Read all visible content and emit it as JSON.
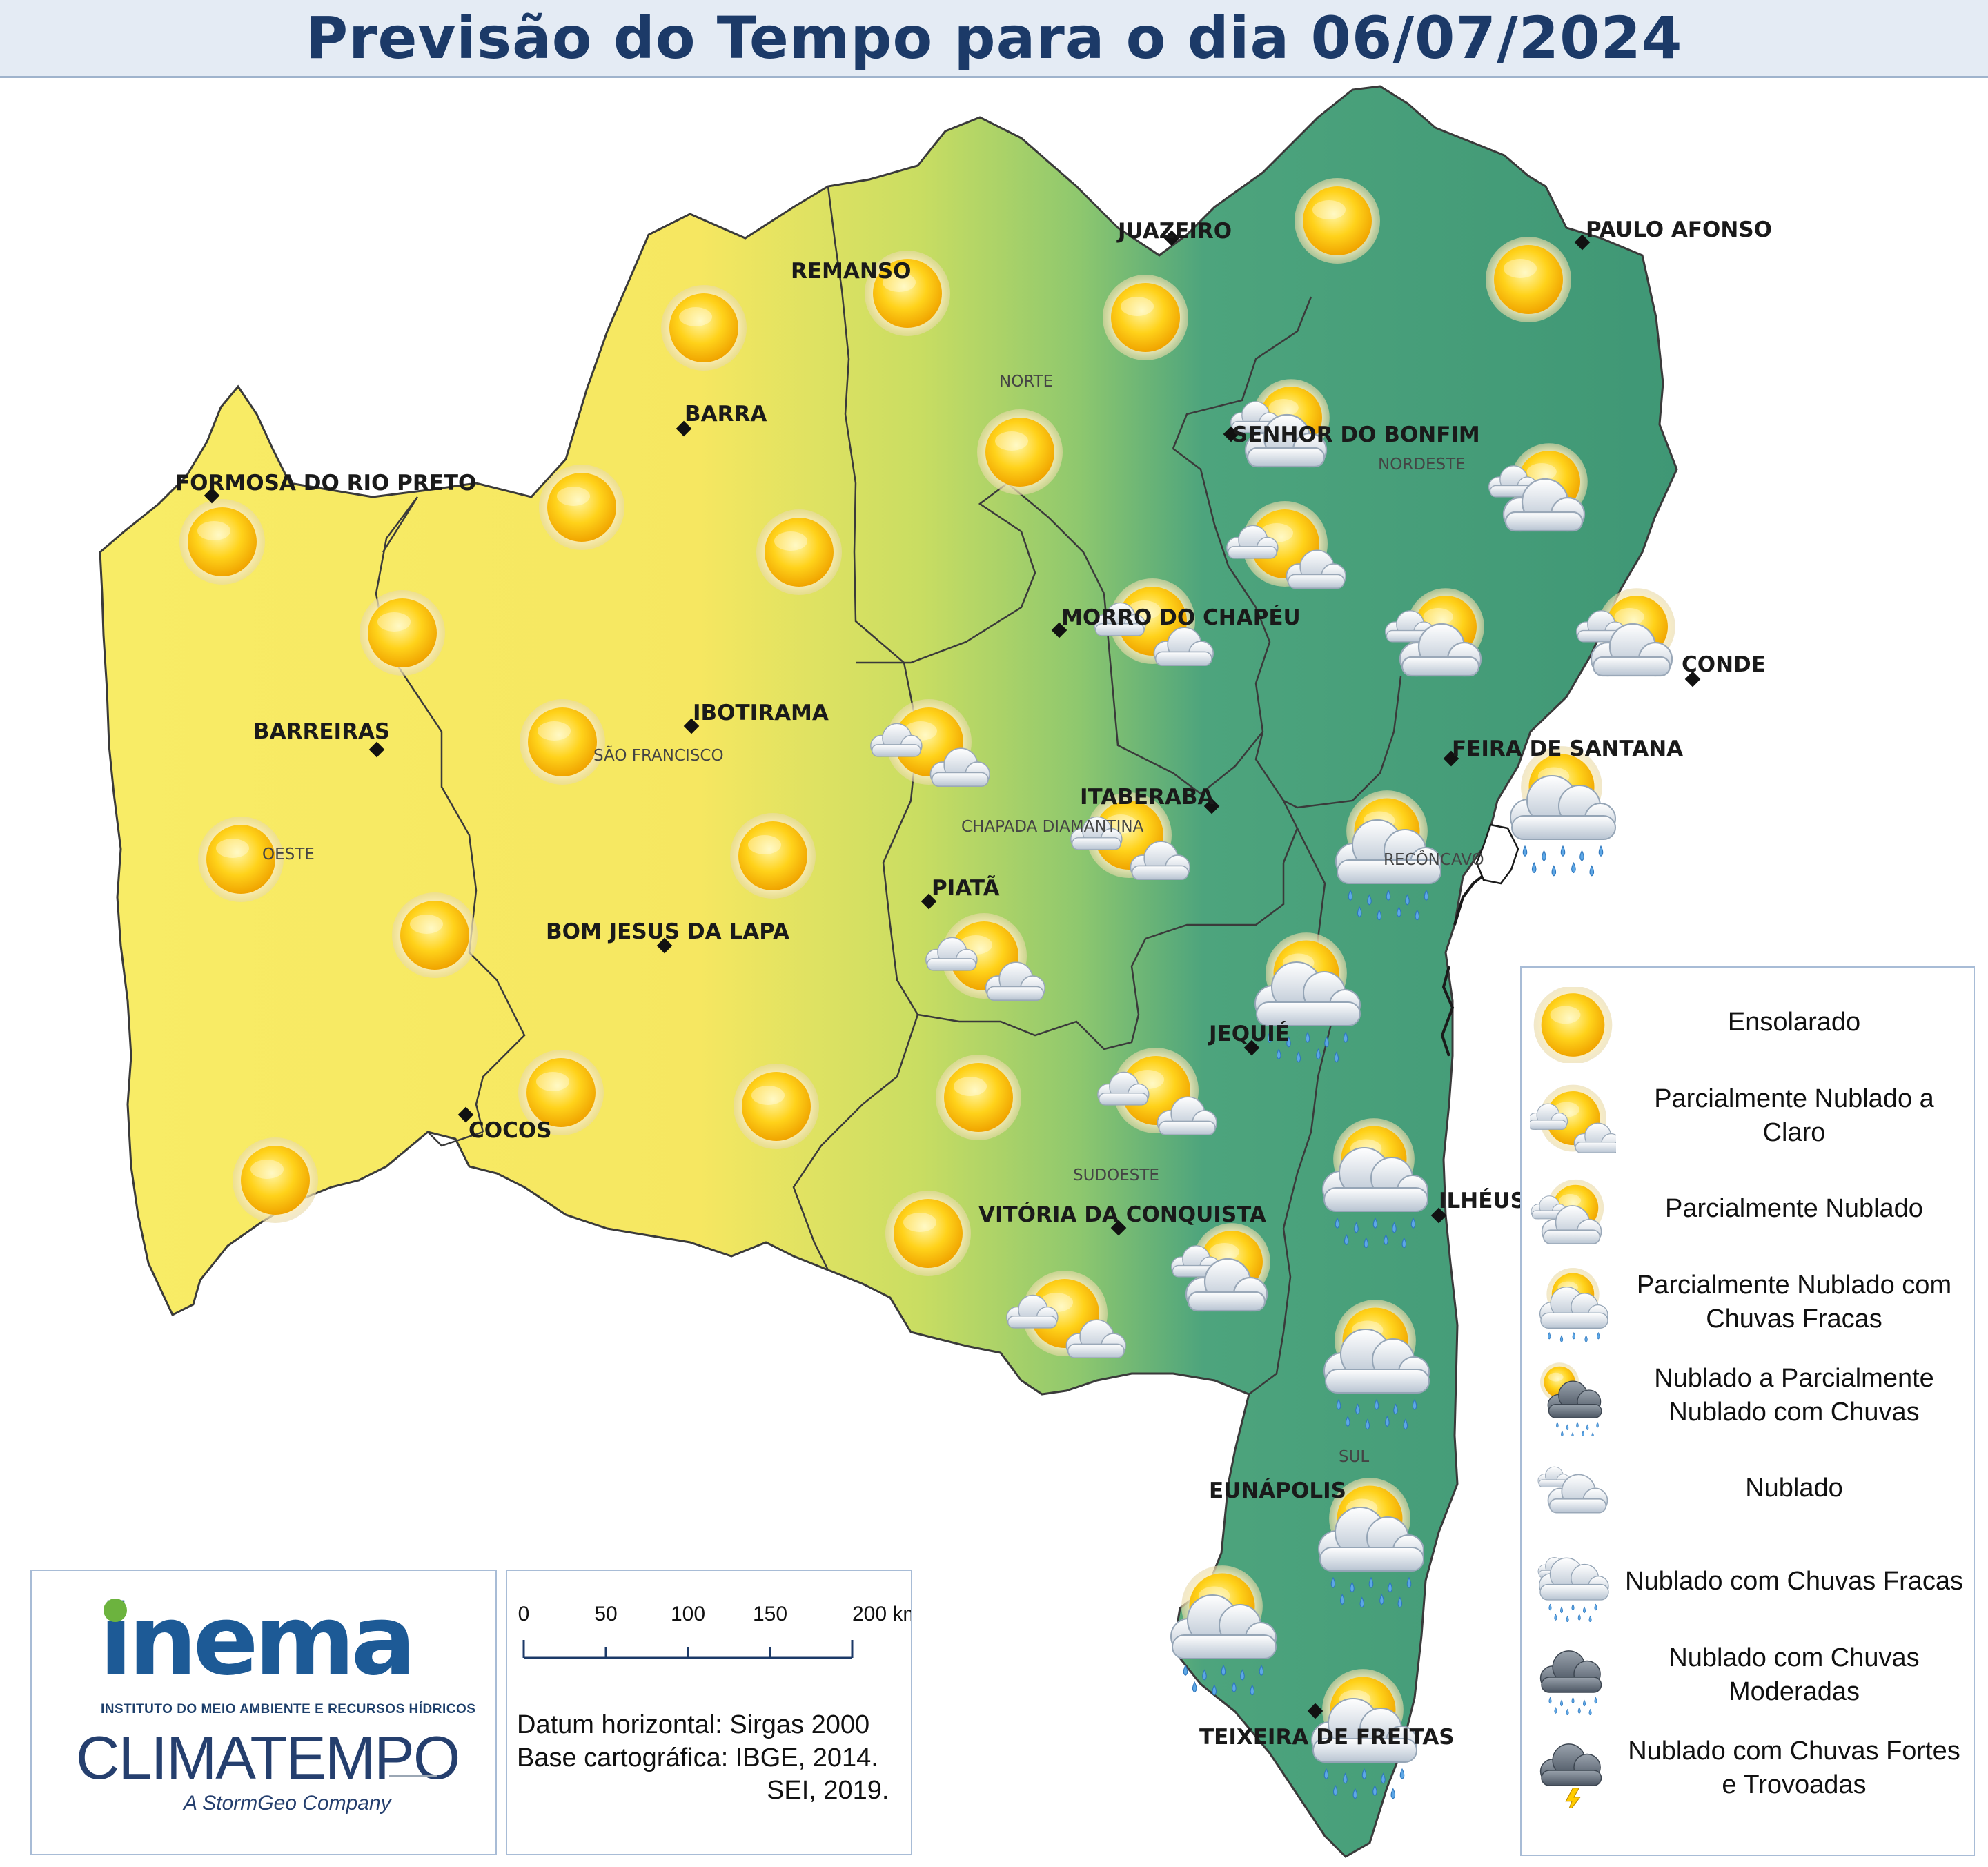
{
  "title": "Previsão do Tempo para o dia 06/07/2024",
  "cities": [
    {
      "name": "JUAZEIRO",
      "icon": "diamond-marker"
    },
    {
      "name": "PAULO AFONSO",
      "icon": "diamond-marker"
    },
    {
      "name": "REMANSO",
      "icon": "diamond-marker"
    },
    {
      "name": "BARRA",
      "icon": "diamond-marker"
    },
    {
      "name": "SENHOR DO BONFIM",
      "icon": "diamond-marker"
    },
    {
      "name": "FORMOSA DO RIO PRETO",
      "icon": "diamond-marker"
    },
    {
      "name": "MORRO DO CHAPÉU",
      "icon": "diamond-marker"
    },
    {
      "name": "CONDE",
      "icon": "diamond-marker"
    },
    {
      "name": "IBOTIRAMA",
      "icon": "diamond-marker"
    },
    {
      "name": "BARREIRAS",
      "icon": "diamond-marker"
    },
    {
      "name": "FEIRA DE SANTANA",
      "icon": "diamond-marker"
    },
    {
      "name": "ITABERABA",
      "icon": "diamond-marker"
    },
    {
      "name": "PIATÃ",
      "icon": "diamond-marker"
    },
    {
      "name": "BOM JESUS DA LAPA",
      "icon": "diamond-marker"
    },
    {
      "name": "JEQUIÉ",
      "icon": "diamond-marker"
    },
    {
      "name": "COCOS",
      "icon": "diamond-marker"
    },
    {
      "name": "ILHÉUS",
      "icon": "diamond-marker"
    },
    {
      "name": "VITÓRIA DA CONQUISTA",
      "icon": "diamond-marker"
    },
    {
      "name": "EUNÁPOLIS",
      "icon": "diamond-marker"
    },
    {
      "name": "TEIXEIRA DE FREITAS",
      "icon": "diamond-marker"
    }
  ],
  "regions": [
    "NORTE",
    "NORDESTE",
    "SÃO FRANCISCO",
    "OESTE",
    "CHAPADA DIAMANTINA",
    "RECÔNCAVO",
    "SUDOESTE",
    "SUL"
  ],
  "legend": [
    {
      "label": "Ensolarado",
      "icon": "sun-icon"
    },
    {
      "label": "Parcialmente Nublado a Claro",
      "icon": "sun-small-cloud-icon"
    },
    {
      "label": "Parcialmente Nublado",
      "icon": "sun-cloud-icon"
    },
    {
      "label": "Parcialmente Nublado com Chuvas Fracas",
      "icon": "sun-cloud-light-rain-icon"
    },
    {
      "label": "Nublado a Parcialmente Nublado com Chuvas",
      "icon": "sun-dark-cloud-rain-icon"
    },
    {
      "label": "Nublado",
      "icon": "cloud-icon"
    },
    {
      "label": "Nublado com Chuvas Fracas",
      "icon": "cloud-light-rain-icon"
    },
    {
      "label": "Nublado com Chuvas Moderadas",
      "icon": "dark-cloud-rain-icon"
    },
    {
      "label": "Nublado com Chuvas Fortes e Trovoadas",
      "icon": "storm-cloud-icon"
    }
  ],
  "scale": {
    "ticks": [
      "0",
      "50",
      "100",
      "150",
      "200 km"
    ]
  },
  "datum": {
    "line1": "Datum horizontal: Sirgas 2000",
    "line2": "Base cartográfica: IBGE, 2014.",
    "line3": "SEI, 2019."
  },
  "logos": {
    "inema": "inema",
    "inema_sub": "INSTITUTO DO MEIO AMBIENTE E RECURSOS HÍDRICOS",
    "climatempo": "CLIMATEMPO",
    "stormgeo": "A StormGeo Company"
  },
  "colors": {
    "dry": "#f7ea5e",
    "mid": "#a9d36a",
    "wet": "#4aa37a",
    "title": "#1c3a68"
  }
}
